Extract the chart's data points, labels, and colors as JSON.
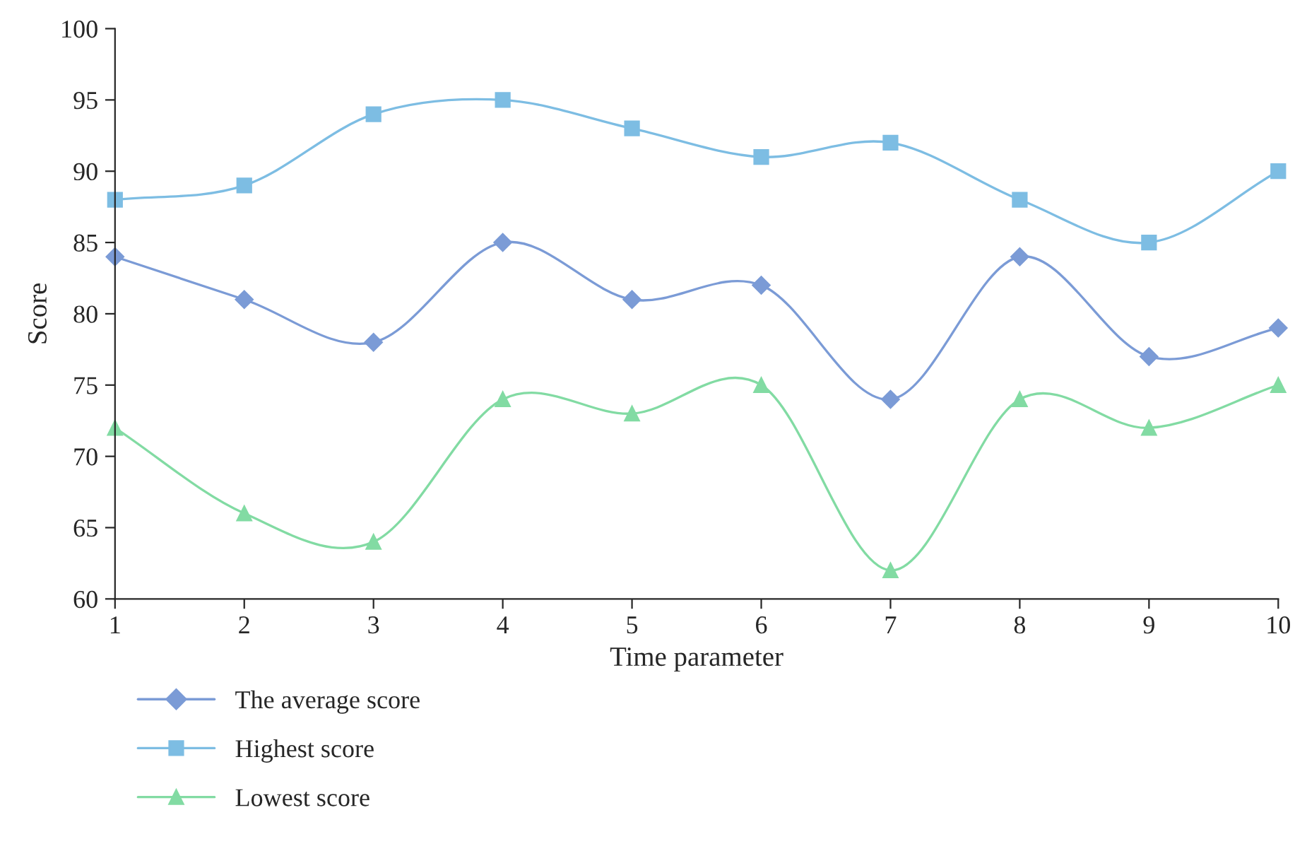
{
  "chart_data": {
    "type": "line",
    "xlabel": "Time parameter",
    "ylabel": "Score",
    "x": [
      1,
      2,
      3,
      4,
      5,
      6,
      7,
      8,
      9,
      10
    ],
    "series": [
      {
        "name": "The average score",
        "color": "#7b9bd6",
        "marker": "diamond",
        "values": [
          84,
          81,
          78,
          85,
          81,
          82,
          74,
          84,
          77,
          79
        ]
      },
      {
        "name": "Highest score",
        "color": "#7dbde3",
        "marker": "square",
        "values": [
          88,
          89,
          94,
          95,
          93,
          91,
          92,
          88,
          85,
          90
        ]
      },
      {
        "name": "Lowest score",
        "color": "#82dba3",
        "marker": "triangle",
        "values": [
          72,
          66,
          64,
          74,
          73,
          75,
          62,
          74,
          72,
          75
        ]
      }
    ],
    "xlim": [
      1,
      10
    ],
    "xticks": [
      1,
      2,
      3,
      4,
      5,
      6,
      7,
      8,
      9,
      10
    ],
    "ylim": [
      60,
      100
    ],
    "yticks": [
      60,
      65,
      70,
      75,
      80,
      85,
      90,
      95,
      100
    ],
    "grid": false,
    "legend": "bottom left",
    "line_style": "solid"
  }
}
